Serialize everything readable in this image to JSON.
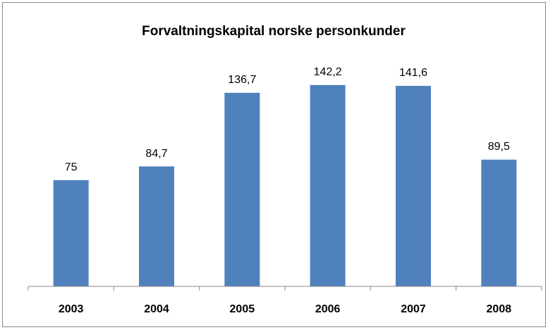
{
  "chart_data": {
    "type": "bar",
    "title": "Forvaltningskapital norske personkunder",
    "categories": [
      "2003",
      "2004",
      "2005",
      "2006",
      "2007",
      "2008"
    ],
    "values": [
      75,
      84.7,
      136.7,
      142.2,
      141.6,
      89.5
    ],
    "value_labels": [
      "75",
      "84,7",
      "136,7",
      "142,2",
      "141,6",
      "89,5"
    ],
    "color": "#4f81bd",
    "ylim": [
      0,
      160
    ]
  }
}
